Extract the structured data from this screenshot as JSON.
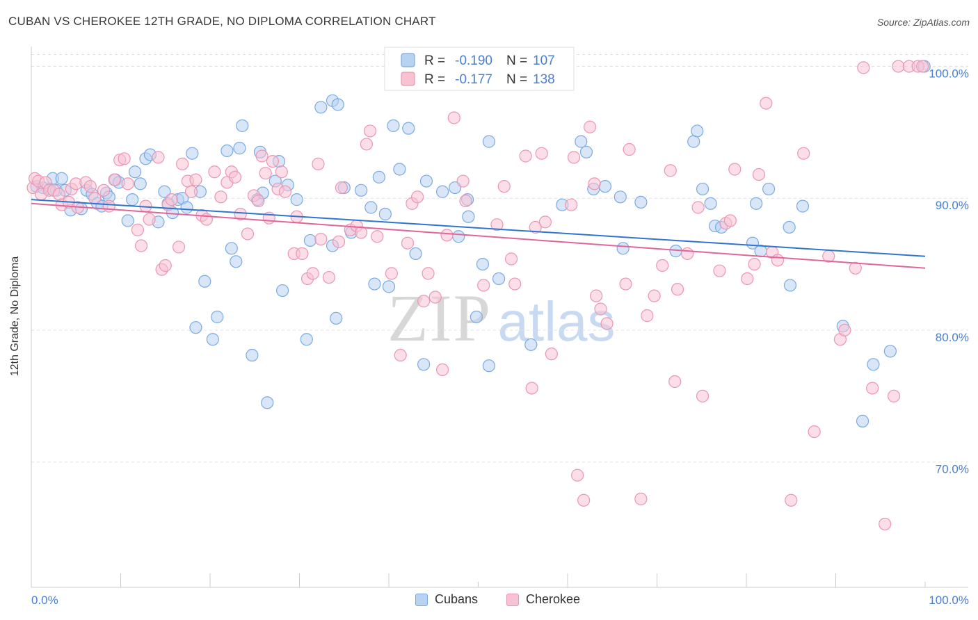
{
  "header": {
    "title": "CUBAN VS CHEROKEE 12TH GRADE, NO DIPLOMA CORRELATION CHART",
    "source": "Source: ZipAtlas.com"
  },
  "watermark": {
    "zip": "ZIP",
    "atlas": "atlas"
  },
  "colors": {
    "cubans_fill": "#b8d2f2",
    "cubans_stroke": "#7aaae4",
    "cubans_line": "#2f74cf",
    "cherokee_fill": "#f7c3d3",
    "cherokee_stroke": "#eb96b2",
    "cherokee_line": "#e0669a",
    "tick_label": "#4a7fd0",
    "grid": "#e0e0e0"
  },
  "legend_top": {
    "rows": [
      {
        "r_label": "R =",
        "r_value": "-0.190",
        "n_label": "N =",
        "n_value": "107"
      },
      {
        "r_label": "R =",
        "r_value": "-0.177",
        "n_label": "N =",
        "n_value": "138"
      }
    ]
  },
  "chart_data": {
    "type": "scatter",
    "title": "CUBAN VS CHEROKEE 12TH GRADE, NO DIPLOMA CORRELATION CHART",
    "xlabel": "",
    "ylabel": "12th Grade, No Diploma",
    "xlim": [
      0,
      100
    ],
    "ylim": [
      60.5,
      101.5
    ],
    "x_tick_labels": [
      "0.0%",
      "100.0%"
    ],
    "y_ticks": [
      70,
      80,
      90,
      100
    ],
    "y_tick_labels": [
      "70.0%",
      "80.0%",
      "90.0%",
      "100.0%"
    ],
    "grid": "horizontal dashed",
    "legend_position": "top-center and bottom-center",
    "series": [
      {
        "name": "Cubans",
        "r": -0.19,
        "n": 107,
        "trend": {
          "x": [
            0,
            100
          ],
          "y": [
            89.9,
            85.6
          ]
        },
        "points": [
          [
            0.6,
            90.9
          ],
          [
            1.3,
            90.8
          ],
          [
            2.1,
            90.7
          ],
          [
            2.4,
            91.5
          ],
          [
            3.4,
            91.5
          ],
          [
            2.8,
            90.6
          ],
          [
            3.8,
            90.6
          ],
          [
            4.4,
            89.1
          ],
          [
            5.6,
            89.2
          ],
          [
            6.2,
            90.6
          ],
          [
            6.8,
            90.3
          ],
          [
            7.4,
            89.6
          ],
          [
            7.9,
            89.4
          ],
          [
            8.4,
            90.4
          ],
          [
            8.7,
            90.1
          ],
          [
            9.4,
            91.4
          ],
          [
            9.8,
            91.2
          ],
          [
            10.8,
            88.3
          ],
          [
            11.3,
            89.9
          ],
          [
            11.6,
            92.0
          ],
          [
            12.2,
            91.1
          ],
          [
            12.8,
            93.0
          ],
          [
            13.3,
            93.3
          ],
          [
            14.2,
            88.2
          ],
          [
            14.9,
            90.5
          ],
          [
            15.3,
            89.6
          ],
          [
            15.8,
            88.9
          ],
          [
            16.4,
            89.9
          ],
          [
            16.9,
            90.0
          ],
          [
            17.4,
            89.3
          ],
          [
            18.0,
            93.4
          ],
          [
            18.4,
            80.2
          ],
          [
            18.9,
            90.5
          ],
          [
            19.4,
            83.7
          ],
          [
            20.3,
            79.3
          ],
          [
            20.8,
            81.0
          ],
          [
            21.9,
            93.6
          ],
          [
            22.4,
            86.2
          ],
          [
            22.9,
            85.2
          ],
          [
            23.3,
            93.8
          ],
          [
            23.6,
            95.5
          ],
          [
            24.7,
            78.1
          ],
          [
            25.3,
            89.9
          ],
          [
            25.6,
            93.5
          ],
          [
            25.9,
            90.4
          ],
          [
            26.4,
            74.5
          ],
          [
            27.3,
            91.3
          ],
          [
            27.7,
            92.8
          ],
          [
            28.1,
            83.0
          ],
          [
            28.7,
            91.0
          ],
          [
            29.7,
            89.9
          ],
          [
            30.8,
            79.3
          ],
          [
            31.2,
            86.8
          ],
          [
            32.4,
            96.9
          ],
          [
            33.7,
            86.4
          ],
          [
            33.7,
            97.4
          ],
          [
            34.1,
            80.9
          ],
          [
            34.3,
            97.1
          ],
          [
            35.0,
            90.8
          ],
          [
            35.8,
            87.4
          ],
          [
            36.9,
            90.6
          ],
          [
            38.0,
            89.3
          ],
          [
            38.4,
            83.5
          ],
          [
            38.9,
            91.6
          ],
          [
            39.6,
            88.8
          ],
          [
            40.0,
            83.3
          ],
          [
            40.5,
            95.5
          ],
          [
            41.2,
            92.2
          ],
          [
            42.2,
            95.3
          ],
          [
            43.0,
            85.8
          ],
          [
            43.9,
            77.4
          ],
          [
            44.2,
            91.3
          ],
          [
            46.0,
            90.5
          ],
          [
            47.4,
            90.8
          ],
          [
            47.8,
            87.1
          ],
          [
            48.8,
            89.9
          ],
          [
            48.9,
            88.6
          ],
          [
            49.8,
            81.0
          ],
          [
            50.5,
            85.0
          ],
          [
            51.2,
            77.3
          ],
          [
            51.2,
            94.3
          ],
          [
            52.3,
            83.9
          ],
          [
            55.9,
            78.9
          ],
          [
            59.4,
            89.5
          ],
          [
            61.5,
            94.3
          ],
          [
            62.1,
            93.5
          ],
          [
            62.9,
            90.7
          ],
          [
            64.2,
            90.9
          ],
          [
            65.9,
            90.1
          ],
          [
            66.2,
            86.2
          ],
          [
            68.2,
            89.7
          ],
          [
            72.1,
            86.0
          ],
          [
            74.1,
            94.3
          ],
          [
            74.5,
            95.1
          ],
          [
            75.1,
            90.7
          ],
          [
            76.0,
            89.6
          ],
          [
            76.5,
            87.9
          ],
          [
            77.2,
            87.8
          ],
          [
            80.7,
            86.6
          ],
          [
            81.1,
            89.6
          ],
          [
            81.6,
            86.0
          ],
          [
            82.5,
            90.7
          ],
          [
            84.8,
            87.8
          ],
          [
            84.9,
            83.4
          ],
          [
            86.3,
            89.4
          ],
          [
            90.8,
            80.3
          ],
          [
            93.0,
            73.1
          ],
          [
            94.2,
            77.4
          ],
          [
            96.1,
            78.4
          ],
          [
            99.9,
            100.0
          ]
        ]
      },
      {
        "name": "Cherokee",
        "r": -0.177,
        "n": 138,
        "trend": {
          "x": [
            0,
            100
          ],
          "y": [
            89.6,
            84.7
          ]
        },
        "points": [
          [
            0.2,
            90.8
          ],
          [
            0.4,
            91.5
          ],
          [
            0.8,
            91.3
          ],
          [
            1.1,
            90.3
          ],
          [
            1.6,
            91.2
          ],
          [
            2.0,
            90.6
          ],
          [
            2.5,
            90.6
          ],
          [
            3.1,
            90.3
          ],
          [
            3.4,
            89.5
          ],
          [
            4.2,
            89.7
          ],
          [
            4.5,
            90.7
          ],
          [
            5.0,
            91.1
          ],
          [
            5.2,
            89.3
          ],
          [
            6.1,
            91.2
          ],
          [
            6.6,
            90.9
          ],
          [
            7.1,
            90.0
          ],
          [
            8.1,
            90.6
          ],
          [
            8.7,
            89.4
          ],
          [
            9.3,
            91.4
          ],
          [
            9.9,
            92.9
          ],
          [
            10.4,
            93.0
          ],
          [
            10.8,
            91.1
          ],
          [
            11.9,
            87.6
          ],
          [
            12.3,
            86.4
          ],
          [
            12.8,
            89.4
          ],
          [
            13.2,
            88.4
          ],
          [
            14.2,
            93.1
          ],
          [
            14.6,
            84.6
          ],
          [
            15.0,
            84.9
          ],
          [
            15.3,
            89.5
          ],
          [
            15.7,
            89.9
          ],
          [
            16.5,
            86.3
          ],
          [
            16.9,
            92.6
          ],
          [
            17.5,
            91.3
          ],
          [
            17.9,
            90.5
          ],
          [
            18.4,
            91.4
          ],
          [
            19.1,
            88.7
          ],
          [
            19.6,
            88.4
          ],
          [
            20.5,
            92.0
          ],
          [
            21.2,
            90.1
          ],
          [
            21.9,
            91.2
          ],
          [
            22.4,
            92.0
          ],
          [
            22.8,
            91.6
          ],
          [
            23.4,
            88.8
          ],
          [
            24.2,
            87.3
          ],
          [
            24.9,
            90.2
          ],
          [
            25.4,
            89.8
          ],
          [
            25.8,
            93.2
          ],
          [
            26.2,
            91.9
          ],
          [
            26.6,
            88.5
          ],
          [
            27.0,
            92.8
          ],
          [
            27.6,
            90.7
          ],
          [
            28.0,
            92.0
          ],
          [
            28.4,
            90.5
          ],
          [
            29.4,
            85.8
          ],
          [
            29.7,
            88.6
          ],
          [
            30.3,
            85.8
          ],
          [
            30.9,
            83.9
          ],
          [
            31.5,
            84.3
          ],
          [
            32.1,
            92.6
          ],
          [
            32.4,
            86.9
          ],
          [
            33.3,
            84.0
          ],
          [
            34.4,
            86.7
          ],
          [
            34.7,
            90.8
          ],
          [
            35.7,
            87.6
          ],
          [
            36.4,
            87.9
          ],
          [
            36.9,
            87.4
          ],
          [
            37.5,
            94.1
          ],
          [
            37.9,
            95.1
          ],
          [
            38.7,
            87.1
          ],
          [
            40.3,
            84.3
          ],
          [
            41.3,
            78.1
          ],
          [
            42.1,
            86.6
          ],
          [
            42.6,
            89.6
          ],
          [
            43.2,
            90.1
          ],
          [
            43.9,
            82.2
          ],
          [
            44.4,
            84.3
          ],
          [
            45.2,
            82.5
          ],
          [
            46.0,
            77.0
          ],
          [
            46.5,
            87.2
          ],
          [
            47.3,
            96.1
          ],
          [
            48.3,
            91.3
          ],
          [
            48.6,
            89.8
          ],
          [
            50.6,
            83.4
          ],
          [
            52.1,
            88.0
          ],
          [
            52.9,
            90.9
          ],
          [
            53.7,
            85.4
          ],
          [
            54.1,
            83.5
          ],
          [
            55.3,
            93.2
          ],
          [
            56.0,
            75.6
          ],
          [
            56.4,
            87.8
          ],
          [
            57.1,
            93.4
          ],
          [
            57.5,
            88.2
          ],
          [
            58.2,
            78.2
          ],
          [
            60.4,
            89.5
          ],
          [
            60.7,
            93.1
          ],
          [
            61.1,
            69.0
          ],
          [
            61.8,
            67.1
          ],
          [
            62.5,
            95.4
          ],
          [
            63.0,
            91.1
          ],
          [
            63.2,
            82.6
          ],
          [
            63.7,
            81.6
          ],
          [
            64.4,
            80.5
          ],
          [
            66.5,
            83.5
          ],
          [
            66.9,
            93.7
          ],
          [
            68.2,
            67.2
          ],
          [
            68.9,
            81.1
          ],
          [
            69.7,
            82.6
          ],
          [
            70.6,
            84.9
          ],
          [
            71.5,
            92.1
          ],
          [
            72.0,
            76.1
          ],
          [
            72.3,
            83.1
          ],
          [
            73.4,
            85.8
          ],
          [
            74.6,
            89.3
          ],
          [
            75.1,
            75.0
          ],
          [
            77.0,
            84.5
          ],
          [
            77.7,
            88.1
          ],
          [
            78.2,
            88.3
          ],
          [
            78.7,
            92.2
          ],
          [
            80.1,
            83.9
          ],
          [
            80.9,
            85.0
          ],
          [
            81.4,
            91.8
          ],
          [
            82.2,
            97.2
          ],
          [
            82.9,
            85.9
          ],
          [
            83.5,
            85.3
          ],
          [
            85.0,
            67.1
          ],
          [
            86.4,
            93.4
          ],
          [
            87.6,
            72.3
          ],
          [
            89.2,
            85.6
          ],
          [
            90.5,
            79.3
          ],
          [
            91.0,
            80.0
          ],
          [
            92.2,
            84.7
          ],
          [
            93.1,
            99.9
          ],
          [
            94.1,
            75.6
          ],
          [
            95.5,
            65.3
          ],
          [
            96.5,
            75.0
          ],
          [
            97.0,
            100.0
          ],
          [
            98.2,
            100.0
          ],
          [
            99.2,
            100.0
          ],
          [
            99.7,
            100.0
          ]
        ]
      }
    ]
  },
  "legend_bottom": {
    "items": [
      "Cubans",
      "Cherokee"
    ]
  }
}
